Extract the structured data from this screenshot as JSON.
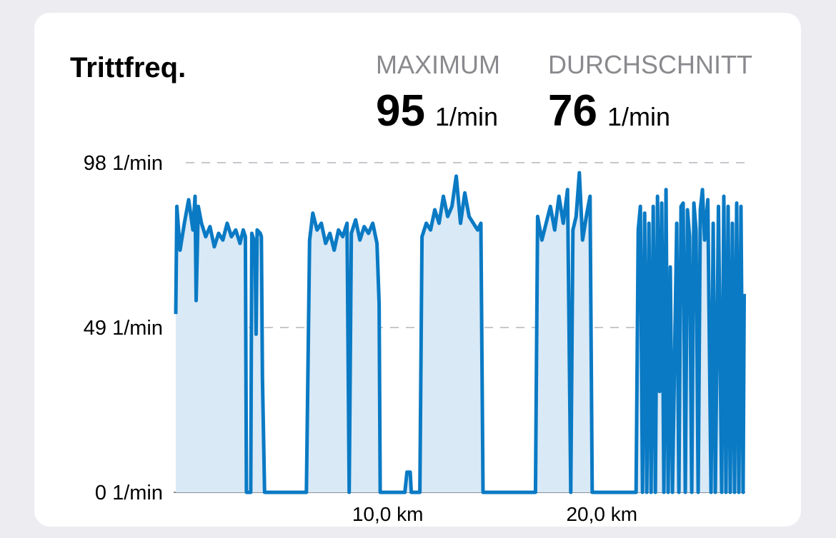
{
  "chart_data": {
    "type": "area",
    "title": "Trittfreq.",
    "stats": [
      {
        "label": "MAXIMUM",
        "value": 95,
        "unit": "1/min"
      },
      {
        "label": "DURCHSCHNITT",
        "value": 76,
        "unit": "1/min"
      }
    ],
    "x": [
      0.1,
      0.15,
      0.3,
      0.5,
      0.7,
      0.9,
      1.0,
      1.05,
      1.15,
      1.3,
      1.5,
      1.7,
      1.9,
      2.1,
      2.3,
      2.5,
      2.7,
      2.9,
      3.1,
      3.25,
      3.35,
      3.4,
      3.6,
      3.65,
      3.8,
      3.85,
      3.9,
      4.05,
      4.1,
      4.15,
      4.25,
      6.2,
      6.35,
      6.5,
      6.7,
      6.9,
      7.1,
      7.3,
      7.5,
      7.7,
      7.9,
      8.1,
      8.2,
      8.3,
      8.5,
      8.7,
      8.9,
      9.1,
      9.3,
      9.5,
      9.6,
      9.65,
      10.8,
      10.9,
      11.05,
      11.1,
      11.5,
      11.6,
      11.8,
      12.0,
      12.2,
      12.4,
      12.6,
      12.8,
      13.0,
      13.2,
      13.4,
      13.6,
      13.8,
      14.0,
      14.2,
      14.35,
      14.45,
      16.9,
      17.0,
      17.2,
      17.4,
      17.6,
      17.8,
      18.0,
      18.2,
      18.4,
      18.55,
      18.65,
      18.8,
      18.95,
      19.1,
      19.3,
      19.45,
      19.55,
      21.6,
      21.7,
      21.8,
      21.9,
      22.0,
      22.1,
      22.2,
      22.3,
      22.4,
      22.5,
      22.6,
      22.7,
      22.8,
      22.9,
      23.0,
      23.1,
      23.2,
      23.3,
      23.5,
      23.6,
      23.7,
      23.8,
      23.9,
      24.0,
      24.1,
      24.2,
      24.3,
      24.4,
      24.5,
      24.6,
      24.7,
      24.8,
      24.95,
      25.1,
      25.2,
      25.3,
      25.45,
      25.6,
      25.7,
      25.8,
      25.9,
      26.0,
      26.1,
      26.2,
      26.3,
      26.4,
      26.5,
      26.6,
      26.65
    ],
    "series": [
      {
        "color": "#0a7ac4",
        "values": [
          53,
          85,
          72,
          80,
          87,
          78,
          88,
          57,
          85,
          80,
          76,
          79,
          73,
          77,
          75,
          80,
          76,
          78,
          74,
          78,
          76,
          0,
          0,
          77,
          74,
          47,
          78,
          77,
          76,
          34,
          0,
          0,
          75,
          83,
          78,
          80,
          74,
          77,
          72,
          78,
          76,
          80,
          0,
          77,
          81,
          75,
          79,
          77,
          80,
          74,
          56,
          0,
          0,
          6,
          6,
          0,
          0,
          76,
          80,
          78,
          84,
          80,
          88,
          82,
          85,
          94,
          80,
          89,
          82,
          80,
          78,
          80,
          0,
          0,
          82,
          75,
          80,
          85,
          78,
          88,
          80,
          90,
          0,
          78,
          82,
          95,
          75,
          83,
          88,
          0,
          0,
          78,
          85,
          0,
          83,
          0,
          80,
          0,
          85,
          0,
          88,
          30,
          86,
          0,
          90,
          0,
          67,
          0,
          80,
          0,
          85,
          86,
          0,
          84,
          76,
          0,
          86,
          78,
          0,
          84,
          90,
          75,
          87,
          0,
          80,
          0,
          85,
          0,
          88,
          0,
          85,
          0,
          80,
          0,
          86,
          0,
          85,
          0,
          59
        ]
      }
    ],
    "area_color": "#d9e9f6",
    "xlim": [
      0,
      26.7
    ],
    "xticks": [
      {
        "value": 10,
        "label": "10,0 km"
      },
      {
        "value": 20,
        "label": "20,0 km"
      }
    ],
    "ylim": [
      0,
      98
    ],
    "yticks": [
      {
        "value": 0,
        "label": "0 1/min"
      },
      {
        "value": 49,
        "label": "49 1/min"
      },
      {
        "value": 98,
        "label": "98 1/min"
      }
    ],
    "grid": true
  }
}
